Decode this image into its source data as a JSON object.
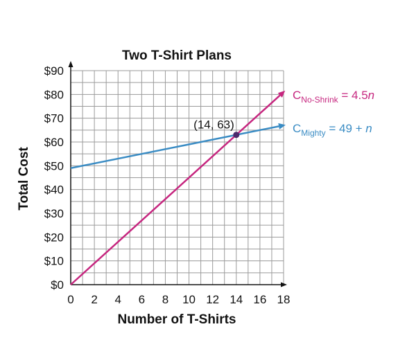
{
  "chart_data": {
    "type": "line",
    "title": "Two T-Shirt Plans",
    "xlabel": "Number of T-Shirts",
    "ylabel": "Total Cost",
    "xlim": [
      0,
      18
    ],
    "ylim": [
      0,
      90
    ],
    "x_ticks": [
      0,
      2,
      4,
      6,
      8,
      10,
      12,
      14,
      16,
      18
    ],
    "x_tick_labels": [
      "0",
      "2",
      "4",
      "6",
      "8",
      "10",
      "12",
      "14",
      "16",
      "18"
    ],
    "y_ticks": [
      0,
      10,
      20,
      30,
      40,
      50,
      60,
      70,
      80,
      90
    ],
    "y_tick_labels": [
      "$0",
      "$10",
      "$20",
      "$30",
      "$40",
      "$50",
      "$60",
      "$70",
      "$80",
      "$90"
    ],
    "grid": true,
    "series": [
      {
        "name": "No-Shrink",
        "color": "#c6267f",
        "x": [
          0,
          18
        ],
        "y": [
          0,
          81
        ],
        "label_main": "C",
        "label_sub": "No-Shrink",
        "label_eq": " = 4.5",
        "label_var": "n"
      },
      {
        "name": "Mighty",
        "color": "#3a8cc4",
        "x": [
          0,
          18
        ],
        "y": [
          49,
          67
        ],
        "label_main": "C",
        "label_sub": "Mighty",
        "label_eq": " = 49 + ",
        "label_var": "n"
      }
    ],
    "annotation": {
      "x": 14,
      "y": 63,
      "text": "(14, 63)",
      "color": "#4a2a6a"
    }
  }
}
